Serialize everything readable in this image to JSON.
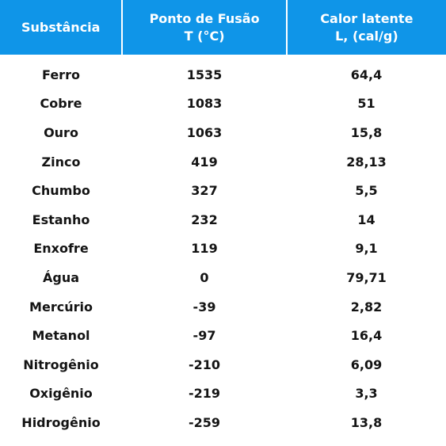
{
  "header": {
    "col1": "Substância",
    "col2_line1": "Ponto de Fusão",
    "col2_line2": "T (°C)",
    "col3_line1": "Calor latente",
    "col3_line2": "L, (cal/g)"
  },
  "colors": {
    "header_bg": "#0f95e8",
    "header_text": "#ffffff",
    "body_text": "#141414"
  },
  "rows": [
    {
      "substance": "Ferro",
      "melting_point": "1535",
      "latent_heat": "64,4"
    },
    {
      "substance": "Cobre",
      "melting_point": "1083",
      "latent_heat": "51"
    },
    {
      "substance": "Ouro",
      "melting_point": "1063",
      "latent_heat": "15,8"
    },
    {
      "substance": "Zinco",
      "melting_point": "419",
      "latent_heat": "28,13"
    },
    {
      "substance": "Chumbo",
      "melting_point": "327",
      "latent_heat": "5,5"
    },
    {
      "substance": "Estanho",
      "melting_point": "232",
      "latent_heat": "14"
    },
    {
      "substance": "Enxofre",
      "melting_point": "119",
      "latent_heat": "9,1"
    },
    {
      "substance": "Água",
      "melting_point": "0",
      "latent_heat": "79,71"
    },
    {
      "substance": "Mercúrio",
      "melting_point": "-39",
      "latent_heat": "2,82"
    },
    {
      "substance": "Metanol",
      "melting_point": "-97",
      "latent_heat": "16,4"
    },
    {
      "substance": "Nitrogênio",
      "melting_point": "-210",
      "latent_heat": "6,09"
    },
    {
      "substance": "Oxigênio",
      "melting_point": "-219",
      "latent_heat": "3,3"
    },
    {
      "substance": "Hidrogênio",
      "melting_point": "-259",
      "latent_heat": "13,8"
    }
  ]
}
